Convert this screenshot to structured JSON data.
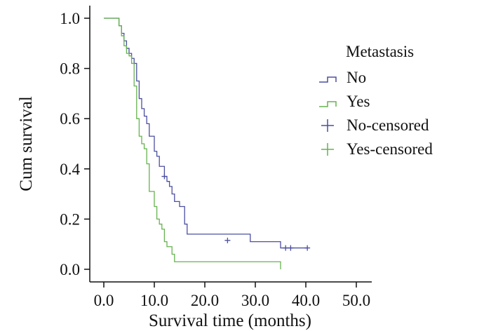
{
  "chart_data": {
    "type": "line",
    "subtype": "kaplan-meier-step",
    "xlabel": "Survival time (months)",
    "ylabel": "Cum survival",
    "xlim": [
      0,
      50
    ],
    "ylim": [
      0,
      1.0
    ],
    "xticks": [
      "0.0",
      "10.0",
      "20.0",
      "30.0",
      "40.0",
      "50.0"
    ],
    "yticks": [
      "0.0",
      "0.2",
      "0.4",
      "0.6",
      "0.8",
      "1.0"
    ],
    "grid": false,
    "legend": {
      "title": "Metastasis",
      "position": "top-right",
      "entries": [
        "No",
        "Yes",
        "No-censored",
        "Yes-censored"
      ]
    },
    "series": [
      {
        "name": "No",
        "color": "#4b4fa0",
        "x": [
          0,
          2.5,
          3,
          3.5,
          4,
          4.5,
          5,
          5.5,
          6,
          6.5,
          7,
          7.5,
          8,
          8.5,
          9,
          10,
          10.5,
          11,
          12,
          12.5,
          13,
          13.5,
          14,
          15,
          16,
          16.5,
          24,
          29,
          35,
          40.5
        ],
        "y": [
          1.0,
          1.0,
          0.97,
          0.94,
          0.91,
          0.88,
          0.86,
          0.84,
          0.82,
          0.75,
          0.68,
          0.64,
          0.61,
          0.58,
          0.53,
          0.47,
          0.45,
          0.41,
          0.37,
          0.35,
          0.33,
          0.3,
          0.27,
          0.25,
          0.18,
          0.14,
          0.14,
          0.11,
          0.085,
          0.085
        ],
        "censored": [
          [
            12,
            0.37
          ],
          [
            24.5,
            0.115
          ],
          [
            36,
            0.085
          ],
          [
            37,
            0.085
          ],
          [
            40.3,
            0.085
          ]
        ]
      },
      {
        "name": "Yes",
        "color": "#66b24f",
        "x": [
          0,
          2.5,
          3,
          3.5,
          4,
          4.5,
          5,
          5.5,
          6,
          6.5,
          7,
          7.5,
          8,
          8.5,
          9,
          10,
          10.5,
          11,
          11.5,
          12,
          12.5,
          13,
          13.5,
          14,
          35
        ],
        "y": [
          1.0,
          1.0,
          0.97,
          0.93,
          0.89,
          0.86,
          0.85,
          0.82,
          0.73,
          0.6,
          0.53,
          0.5,
          0.48,
          0.42,
          0.31,
          0.25,
          0.2,
          0.18,
          0.16,
          0.11,
          0.09,
          0.09,
          0.06,
          0.03,
          0.03
        ],
        "end": [
          35,
          0.0
        ],
        "censored": []
      }
    ]
  }
}
